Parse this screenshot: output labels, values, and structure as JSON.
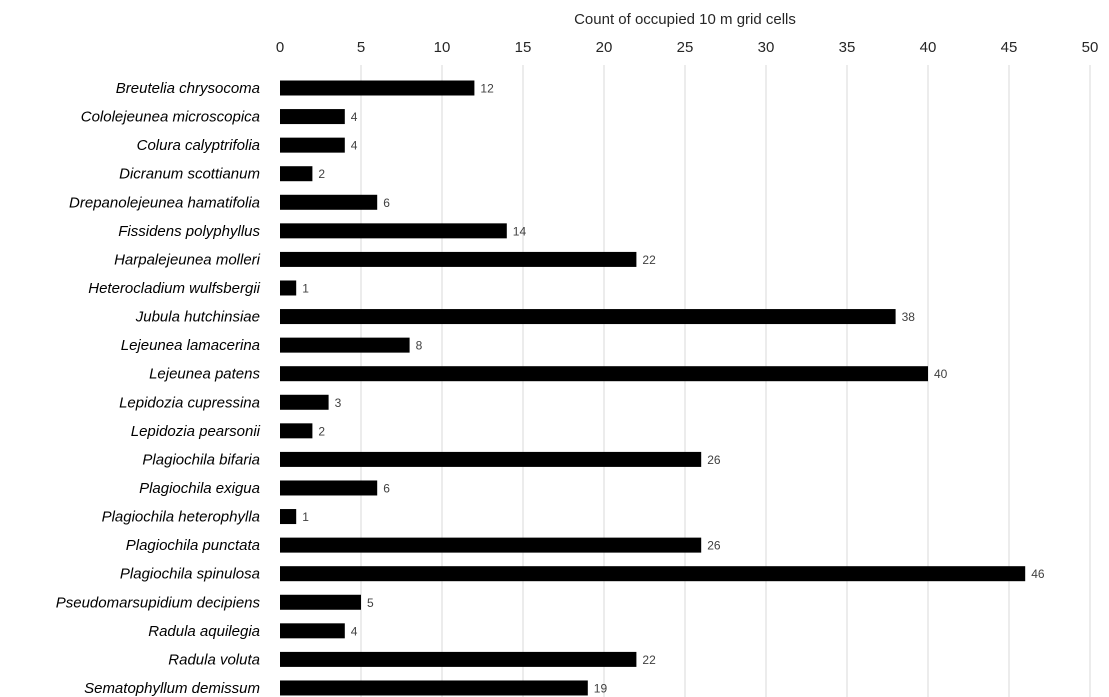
{
  "chart_data": {
    "type": "bar",
    "orientation": "horizontal",
    "title": "",
    "xlabel": "Count of occupied 10 m grid cells",
    "ylabel": "",
    "xlim": [
      0,
      50
    ],
    "x_ticks": [
      0,
      5,
      10,
      15,
      20,
      25,
      30,
      35,
      40,
      45,
      50
    ],
    "x_axis_position": "top",
    "grid": true,
    "legend": "none",
    "data_labels": true,
    "bar_color": "#000000",
    "grid_color": "#d9d9d9",
    "categories": [
      "Breutelia chrysocoma",
      "Cololejeunea microscopica",
      "Colura calyptrifolia",
      "Dicranum scottianum",
      "Drepanolejeunea hamatifolia",
      "Fissidens polyphyllus",
      "Harpalejeunea molleri",
      "Heterocladium wulfsbergii",
      "Jubula hutchinsiae",
      "Lejeunea lamacerina",
      "Lejeunea patens",
      "Lepidozia cupressina",
      "Lepidozia pearsonii",
      "Plagiochila bifaria",
      "Plagiochila exigua",
      "Plagiochila heterophylla",
      "Plagiochila punctata",
      "Plagiochila spinulosa",
      "Pseudomarsupidium decipiens",
      "Radula aquilegia",
      "Radula voluta",
      "Sematophyllum demissum"
    ],
    "values": [
      12,
      4,
      4,
      2,
      6,
      14,
      22,
      1,
      38,
      8,
      40,
      3,
      2,
      26,
      6,
      1,
      26,
      46,
      5,
      4,
      22,
      19
    ]
  }
}
